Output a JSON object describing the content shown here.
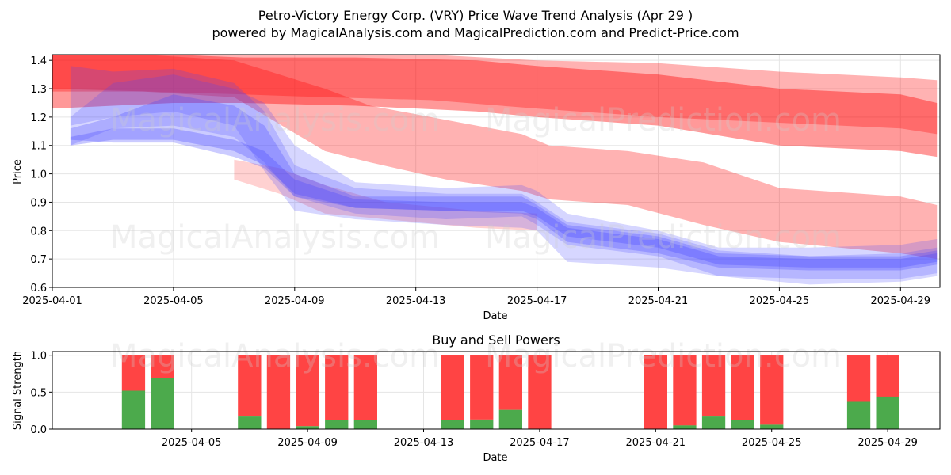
{
  "title_line1": "Petro-Victory Energy Corp. (VRY) Price Wave Trend Analysis (Apr 29 )",
  "title_line2": "powered by MagicalAnalysis.com and MagicalPrediction.com and Predict-Price.com",
  "watermarks": [
    "MagicalAnalysis.com",
    "MagicalPrediction.com"
  ],
  "colors": {
    "sell": "#ff4444",
    "buy": "#4caa4c",
    "red_band": "#ff0000",
    "blue_band": "#4444ff",
    "grid": "#e5e5e5"
  },
  "chart_data": [
    {
      "type": "area",
      "title": "",
      "xlabel": "Date",
      "ylabel": "Price",
      "xlim": [
        0,
        29.3
      ],
      "ylim": [
        0.6,
        1.42
      ],
      "grid": true,
      "x_origin_date": "2025-04-01",
      "xticks": [
        {
          "day": 0,
          "label": "2025-04-01"
        },
        {
          "day": 4,
          "label": "2025-04-05"
        },
        {
          "day": 8,
          "label": "2025-04-09"
        },
        {
          "day": 12,
          "label": "2025-04-13"
        },
        {
          "day": 16,
          "label": "2025-04-17"
        },
        {
          "day": 20,
          "label": "2025-04-21"
        },
        {
          "day": 24,
          "label": "2025-04-25"
        },
        {
          "day": 28,
          "label": "2025-04-29"
        }
      ],
      "yticks": [
        0.6,
        0.7,
        0.8,
        0.9,
        1.0,
        1.1,
        1.2,
        1.3,
        1.4
      ],
      "series": [
        {
          "name": "red wave 1",
          "color": "red",
          "opacity": 0.3,
          "x": [
            0,
            6.3,
            9,
            12.5,
            16,
            20,
            24,
            28,
            29.2
          ],
          "upper": [
            1.42,
            1.42,
            1.42,
            1.42,
            1.4,
            1.39,
            1.36,
            1.34,
            1.33
          ],
          "lower": [
            1.3,
            1.28,
            1.27,
            1.26,
            1.23,
            1.2,
            1.18,
            1.16,
            1.14
          ]
        },
        {
          "name": "red wave 2",
          "color": "red",
          "opacity": 0.4,
          "x": [
            0,
            4,
            6.3,
            10,
            14,
            16,
            20,
            24,
            28,
            29.2
          ],
          "upper": [
            1.42,
            1.42,
            1.41,
            1.41,
            1.4,
            1.38,
            1.35,
            1.3,
            1.28,
            1.25
          ],
          "lower": [
            1.23,
            1.25,
            1.25,
            1.24,
            1.22,
            1.2,
            1.17,
            1.1,
            1.08,
            1.06
          ]
        },
        {
          "name": "red wave 3",
          "color": "red",
          "opacity": 0.3,
          "x": [
            0,
            3,
            6,
            9,
            10.5,
            13,
            15.5,
            16.4,
            19,
            21.5,
            24,
            28,
            29.2
          ],
          "upper": [
            1.42,
            1.42,
            1.4,
            1.3,
            1.24,
            1.19,
            1.14,
            1.1,
            1.08,
            1.04,
            0.95,
            0.92,
            0.89
          ],
          "lower": [
            1.29,
            1.29,
            1.27,
            1.08,
            1.04,
            0.98,
            0.94,
            0.91,
            0.89,
            0.82,
            0.76,
            0.72,
            0.7
          ]
        },
        {
          "name": "red wave 4",
          "color": "red",
          "opacity": 0.18,
          "x": [
            6,
            7.5,
            9,
            11,
            14,
            16
          ],
          "upper": [
            1.05,
            1.02,
            0.96,
            0.9,
            0.87,
            0.86
          ],
          "lower": [
            0.98,
            0.93,
            0.86,
            0.84,
            0.81,
            0.8
          ]
        },
        {
          "name": "blue wave 1",
          "color": "blue",
          "opacity": 0.22,
          "x": [
            0.6,
            2,
            4,
            6,
            7,
            8,
            10,
            13,
            15.5,
            16,
            17,
            20,
            22,
            25,
            28,
            29.2
          ],
          "upper": [
            1.2,
            1.32,
            1.35,
            1.3,
            1.25,
            1.1,
            0.97,
            0.95,
            0.96,
            0.94,
            0.86,
            0.8,
            0.74,
            0.74,
            0.75,
            0.77
          ],
          "lower": [
            1.1,
            1.16,
            1.17,
            1.13,
            1.04,
            0.92,
            0.86,
            0.84,
            0.85,
            0.82,
            0.75,
            0.71,
            0.64,
            0.61,
            0.62,
            0.64
          ]
        },
        {
          "name": "blue wave 2",
          "color": "blue",
          "opacity": 0.22,
          "x": [
            0.6,
            2,
            4,
            6,
            7,
            8,
            10,
            13,
            15.5,
            16,
            17,
            20,
            22,
            25,
            28,
            29.2
          ],
          "upper": [
            1.38,
            1.36,
            1.37,
            1.32,
            1.22,
            1.03,
            0.95,
            0.93,
            0.93,
            0.9,
            0.83,
            0.79,
            0.73,
            0.71,
            0.72,
            0.74
          ],
          "lower": [
            1.17,
            1.2,
            1.22,
            1.17,
            1.01,
            0.87,
            0.84,
            0.82,
            0.81,
            0.8,
            0.69,
            0.67,
            0.64,
            0.63,
            0.63,
            0.65
          ]
        },
        {
          "name": "blue wave 3",
          "color": "blue",
          "opacity": 0.28,
          "x": [
            0.6,
            2,
            4,
            6,
            7,
            8,
            10,
            13,
            15.5,
            16,
            17,
            20,
            22,
            25,
            28,
            29.2
          ],
          "upper": [
            1.16,
            1.2,
            1.28,
            1.24,
            1.17,
            1.0,
            0.92,
            0.92,
            0.92,
            0.89,
            0.82,
            0.78,
            0.72,
            0.71,
            0.71,
            0.73
          ],
          "lower": [
            1.12,
            1.11,
            1.11,
            1.06,
            1.02,
            0.92,
            0.88,
            0.87,
            0.86,
            0.84,
            0.76,
            0.72,
            0.67,
            0.66,
            0.66,
            0.68
          ]
        },
        {
          "name": "blue wave 4",
          "color": "blue",
          "opacity": 0.3,
          "x": [
            0.6,
            2,
            4,
            6,
            7,
            8,
            10,
            13,
            15.5,
            16,
            17,
            20,
            22,
            25,
            28,
            29.2
          ],
          "upper": [
            1.13,
            1.16,
            1.16,
            1.12,
            1.08,
            0.98,
            0.91,
            0.9,
            0.9,
            0.88,
            0.81,
            0.77,
            0.71,
            0.7,
            0.7,
            0.72
          ],
          "lower": [
            1.1,
            1.12,
            1.12,
            1.08,
            1.03,
            0.93,
            0.88,
            0.87,
            0.87,
            0.85,
            0.78,
            0.74,
            0.68,
            0.67,
            0.67,
            0.69
          ]
        }
      ]
    },
    {
      "type": "bar",
      "title": "Buy and Sell Powers",
      "xlabel": "Date",
      "ylabel": "Signal Strength",
      "xlim": [
        -0.8,
        29.8
      ],
      "ylim": [
        0,
        1.05
      ],
      "grid": true,
      "x_origin_date": "2025-04-01",
      "xticks": [
        {
          "day": 4,
          "label": "2025-04-05"
        },
        {
          "day": 8,
          "label": "2025-04-09"
        },
        {
          "day": 12,
          "label": "2025-04-13"
        },
        {
          "day": 16,
          "label": "2025-04-17"
        },
        {
          "day": 20,
          "label": "2025-04-21"
        },
        {
          "day": 24,
          "label": "2025-04-25"
        },
        {
          "day": 28,
          "label": "2025-04-29"
        }
      ],
      "yticks": [
        {
          "value": 0.0,
          "label": "0.0"
        },
        {
          "value": 0.5,
          "label": "0.5"
        },
        {
          "value": 1.0,
          "label": "1.0"
        }
      ],
      "series": [
        {
          "name": "Buy Power",
          "color": "green"
        },
        {
          "name": "Sell Power",
          "color": "red"
        }
      ],
      "bars": [
        {
          "day": 2,
          "buy": 0.52
        },
        {
          "day": 3,
          "buy": 0.69
        },
        {
          "day": 6,
          "buy": 0.17
        },
        {
          "day": 7,
          "buy": 0.0
        },
        {
          "day": 8,
          "buy": 0.04
        },
        {
          "day": 9,
          "buy": 0.12
        },
        {
          "day": 10,
          "buy": 0.12
        },
        {
          "day": 13,
          "buy": 0.12
        },
        {
          "day": 14,
          "buy": 0.13
        },
        {
          "day": 15,
          "buy": 0.26
        },
        {
          "day": 16,
          "buy": 0.0
        },
        {
          "day": 20,
          "buy": 0.0
        },
        {
          "day": 21,
          "buy": 0.05
        },
        {
          "day": 22,
          "buy": 0.17
        },
        {
          "day": 23,
          "buy": 0.12
        },
        {
          "day": 24,
          "buy": 0.06
        },
        {
          "day": 27,
          "buy": 0.37
        },
        {
          "day": 28,
          "buy": 0.44
        }
      ]
    }
  ]
}
